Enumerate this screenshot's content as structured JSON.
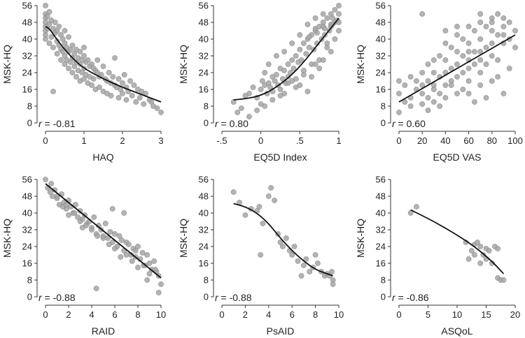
{
  "figure_title": "",
  "chart_data": [
    {
      "type": "scatter",
      "xlabel": "HAQ",
      "ylabel": "MSK-HQ",
      "xlim": [
        0,
        3
      ],
      "ylim": [
        0,
        56
      ],
      "xticks": [
        0,
        1,
        2,
        3
      ],
      "xtick_labels": [
        "0",
        "1",
        "2",
        "3"
      ],
      "yticks": [
        0,
        8,
        16,
        24,
        32,
        40,
        48,
        56
      ],
      "ytick_labels": [
        "0",
        "8",
        "16",
        "24",
        "32",
        "40",
        "48",
        "56"
      ],
      "r_label": "r",
      "r_value": "= -0.81",
      "fit_line": {
        "x": [
          0,
          0.1,
          0.25,
          0.5,
          0.75,
          1.0,
          1.5,
          2.0,
          2.5,
          3.0
        ],
        "y": [
          46,
          45,
          41,
          35,
          30,
          26,
          21,
          17,
          13.5,
          10
        ]
      },
      "points": {
        "x": [
          0,
          0,
          0,
          0,
          0,
          0,
          0,
          0,
          0.05,
          0.05,
          0.1,
          0.1,
          0.1,
          0.15,
          0.15,
          0.2,
          0.2,
          0.2,
          0.25,
          0.25,
          0.3,
          0.3,
          0.3,
          0.35,
          0.35,
          0.4,
          0.4,
          0.4,
          0.45,
          0.45,
          0.5,
          0.5,
          0.5,
          0.5,
          0.55,
          0.55,
          0.6,
          0.6,
          0.6,
          0.65,
          0.65,
          0.7,
          0.7,
          0.7,
          0.75,
          0.75,
          0.8,
          0.8,
          0.8,
          0.85,
          0.85,
          0.9,
          0.9,
          0.9,
          0.95,
          0.95,
          1.0,
          1.0,
          1.0,
          1.0,
          1.05,
          1.05,
          1.1,
          1.1,
          1.15,
          1.15,
          1.2,
          1.2,
          1.25,
          1.25,
          1.3,
          1.3,
          1.35,
          1.35,
          1.4,
          1.4,
          1.45,
          1.5,
          1.5,
          1.55,
          1.6,
          1.6,
          1.65,
          1.7,
          1.7,
          1.75,
          1.8,
          1.8,
          1.85,
          1.9,
          1.9,
          1.95,
          2.0,
          2.0,
          2.05,
          2.1,
          2.1,
          2.15,
          2.2,
          2.25,
          2.3,
          2.35,
          2.4,
          2.45,
          2.5,
          2.55,
          2.6,
          2.7,
          2.75,
          2.8,
          2.9,
          3.0
        ],
        "y": [
          56,
          52,
          50,
          48,
          46,
          44,
          42,
          40,
          51,
          45,
          53,
          47,
          38,
          49,
          41,
          45,
          36,
          15,
          43,
          48,
          44,
          39,
          33,
          37,
          46,
          42,
          35,
          30,
          40,
          34,
          38,
          32,
          28,
          44,
          36,
          30,
          41,
          34,
          26,
          35,
          29,
          37,
          31,
          24,
          33,
          27,
          35,
          29,
          22,
          31,
          25,
          34,
          28,
          20,
          30,
          24,
          32,
          26,
          21,
          36,
          29,
          23,
          30,
          19,
          27,
          22,
          28,
          18,
          26,
          21,
          25,
          16,
          24,
          30,
          22,
          17,
          23,
          27,
          15,
          21,
          20,
          14,
          24,
          19,
          13,
          22,
          18,
          31,
          17,
          21,
          12,
          16,
          19,
          14,
          23,
          17,
          11,
          15,
          20,
          13,
          18,
          10,
          16,
          12,
          15,
          9,
          14,
          11,
          10,
          8,
          7,
          5
        ],
        "yaxis_tick_step": 8
      }
    },
    {
      "type": "scatter",
      "xlabel": "EQ5D Index",
      "ylabel": "MSK-HQ",
      "xlim": [
        -0.5,
        1
      ],
      "ylim": [
        0,
        56
      ],
      "xticks": [
        -0.5,
        0,
        0.5,
        1
      ],
      "xtick_labels": [
        "-.5",
        "0",
        ".5",
        "1"
      ],
      "yticks": [
        0,
        8,
        16,
        24,
        32,
        40,
        48,
        56
      ],
      "ytick_labels": [
        "0",
        "8",
        "16",
        "24",
        "32",
        "40",
        "48",
        "56"
      ],
      "r_label": "r",
      "r_value": "= 0.80",
      "fit_line": {
        "x": [
          -0.35,
          -0.2,
          0,
          0.2,
          0.4,
          0.55,
          0.7,
          0.85,
          1.0
        ],
        "y": [
          11,
          11.5,
          13,
          17,
          23,
          29,
          36,
          43,
          50
        ]
      },
      "points": {
        "x": [
          -0.35,
          -0.3,
          -0.25,
          -0.2,
          -0.15,
          -0.1,
          -0.05,
          0,
          0,
          0.02,
          0.05,
          0.05,
          0.08,
          0.1,
          0.1,
          0.12,
          0.15,
          0.15,
          0.18,
          0.2,
          0.2,
          0.22,
          0.25,
          0.25,
          0.28,
          0.3,
          0.3,
          0.32,
          0.35,
          0.35,
          0.38,
          0.4,
          0.4,
          0.42,
          0.45,
          0.45,
          0.48,
          0.5,
          0.5,
          0.52,
          0.55,
          0.55,
          0.58,
          0.6,
          0.6,
          0.62,
          0.65,
          0.65,
          0.68,
          0.7,
          0.7,
          0.72,
          0.75,
          0.75,
          0.78,
          0.8,
          0.8,
          0.82,
          0.85,
          0.85,
          0.88,
          0.9,
          0.9,
          0.92,
          0.95,
          0.95,
          0.98,
          1.0,
          1.0,
          1.0,
          0.6,
          0.7,
          0.8,
          0.9,
          0.5,
          0.4,
          0.3,
          0.65,
          0.75,
          0.85,
          0.95,
          0.55,
          0.45,
          0.35,
          0.25,
          0.15,
          0.05,
          -0.05,
          -0.15,
          0.7,
          0.8,
          0.9,
          1.0,
          0.62,
          0.72,
          0.82,
          0.92
        ],
        "y": [
          10,
          5,
          7,
          13,
          14,
          17,
          12,
          16,
          9,
          20,
          18,
          24,
          14,
          19,
          28,
          17,
          22,
          15,
          20,
          23,
          32,
          18,
          26,
          16,
          21,
          25,
          34,
          19,
          28,
          22,
          24,
          30,
          38,
          26,
          32,
          21,
          29,
          35,
          42,
          30,
          38,
          25,
          33,
          40,
          47,
          36,
          42,
          28,
          35,
          44,
          50,
          38,
          46,
          30,
          40,
          48,
          52,
          42,
          50,
          36,
          44,
          52,
          46,
          50,
          48,
          54,
          49,
          56,
          44,
          52,
          15,
          28,
          30,
          34,
          18,
          20,
          14,
          22,
          26,
          38,
          40,
          23,
          17,
          19,
          13,
          11,
          8,
          6,
          3,
          45,
          46,
          47,
          48,
          41,
          43,
          45,
          47
        ],
        "yaxis_tick_step": 8
      }
    },
    {
      "type": "scatter",
      "xlabel": "EQ5D VAS",
      "ylabel": "MSK-HQ",
      "xlim": [
        0,
        100
      ],
      "ylim": [
        0,
        56
      ],
      "xticks": [
        0,
        20,
        40,
        60,
        80,
        100
      ],
      "xtick_labels": [
        "0",
        "20",
        "40",
        "60",
        "80",
        "100"
      ],
      "yticks": [
        0,
        8,
        16,
        24,
        32,
        40,
        48,
        56
      ],
      "ytick_labels": [
        "0",
        "8",
        "16",
        "24",
        "32",
        "40",
        "48",
        "56"
      ],
      "r_label": "r",
      "r_value": "= 0.60",
      "fit_line": {
        "x": [
          0,
          100
        ],
        "y": [
          10,
          42
        ]
      },
      "points": {
        "x": [
          0,
          0,
          0,
          5,
          5,
          10,
          10,
          10,
          15,
          15,
          20,
          20,
          20,
          20,
          25,
          25,
          25,
          30,
          30,
          30,
          30,
          35,
          35,
          35,
          40,
          40,
          40,
          40,
          40,
          45,
          45,
          45,
          50,
          50,
          50,
          50,
          50,
          55,
          55,
          55,
          60,
          60,
          60,
          60,
          60,
          60,
          65,
          65,
          65,
          70,
          70,
          70,
          70,
          70,
          70,
          75,
          75,
          75,
          80,
          80,
          80,
          80,
          80,
          85,
          85,
          85,
          90,
          90,
          90,
          90,
          95,
          95,
          100,
          100,
          25,
          35,
          45,
          55,
          65,
          75,
          85,
          95,
          40,
          50,
          60,
          70,
          80,
          90,
          30,
          20
        ],
        "y": [
          14,
          20,
          5,
          18,
          10,
          22,
          12,
          8,
          20,
          16,
          24,
          18,
          14,
          9,
          28,
          20,
          12,
          30,
          24,
          16,
          10,
          32,
          22,
          14,
          38,
          30,
          24,
          18,
          12,
          36,
          26,
          20,
          42,
          34,
          28,
          22,
          14,
          40,
          32,
          24,
          46,
          38,
          30,
          26,
          20,
          14,
          44,
          34,
          28,
          48,
          40,
          34,
          30,
          24,
          18,
          46,
          36,
          28,
          50,
          44,
          38,
          32,
          20,
          52,
          42,
          30,
          50,
          46,
          38,
          14,
          48,
          40,
          44,
          36,
          6,
          8,
          18,
          16,
          10,
          12,
          22,
          26,
          44,
          46,
          34,
          52,
          48,
          42,
          18,
          52
        ],
        "yaxis_tick_step": 8
      }
    },
    {
      "type": "scatter",
      "xlabel": "RAID",
      "ylabel": "MSK-HQ",
      "xlim": [
        0,
        10
      ],
      "ylim": [
        0,
        56
      ],
      "xticks": [
        0,
        2,
        4,
        6,
        8,
        10
      ],
      "xtick_labels": [
        "0",
        "2",
        "4",
        "6",
        "8",
        "10"
      ],
      "yticks": [
        0,
        8,
        16,
        24,
        32,
        40,
        48,
        56
      ],
      "ytick_labels": [
        "0",
        "8",
        "16",
        "24",
        "32",
        "40",
        "48",
        "56"
      ],
      "r_label": "r",
      "r_value": "= -0.88",
      "fit_line": {
        "x": [
          0,
          1,
          2,
          3,
          4,
          5,
          6,
          7,
          8,
          9,
          10
        ],
        "y": [
          54,
          49.5,
          45,
          40.5,
          36,
          31.5,
          27,
          22.5,
          18,
          13.5,
          9
        ]
      },
      "points": {
        "x": [
          0,
          0.2,
          0.4,
          0.6,
          0.8,
          1.0,
          1.2,
          1.4,
          1.6,
          1.8,
          2.0,
          2.2,
          2.4,
          2.6,
          2.8,
          3.0,
          3.2,
          3.4,
          3.6,
          3.8,
          4.0,
          4.2,
          4.4,
          4.6,
          4.8,
          5.0,
          5.2,
          5.4,
          5.6,
          5.8,
          6.0,
          6.2,
          6.4,
          6.6,
          6.8,
          7.0,
          7.2,
          7.4,
          7.6,
          7.8,
          8.0,
          8.2,
          8.4,
          8.6,
          8.8,
          9.0,
          9.2,
          9.4,
          9.6,
          9.8,
          10,
          1.0,
          1.5,
          2.5,
          3.5,
          4.5,
          5.5,
          6.5,
          7.5,
          8.5,
          9.5,
          2.0,
          3.0,
          4.0,
          5.0,
          6.0,
          7.0,
          8.0,
          9.0,
          4.4,
          5.8,
          6.8,
          7.8,
          8.8,
          9.8,
          0.5,
          1.8,
          3.2
        ],
        "y": [
          56,
          52,
          50,
          48,
          51,
          47,
          44,
          49,
          45,
          42,
          46,
          43,
          40,
          44,
          38,
          41,
          37,
          39,
          35,
          36,
          33,
          38,
          30,
          34,
          32,
          29,
          35,
          28,
          31,
          26,
          30,
          24,
          29,
          27,
          22,
          26,
          25,
          20,
          23,
          19,
          24,
          18,
          21,
          15,
          20,
          16,
          13,
          17,
          12,
          10,
          6,
          48,
          43,
          40,
          34,
          29,
          25,
          19,
          17,
          15,
          13,
          39,
          36,
          32,
          28,
          23,
          20,
          14,
          11,
          4,
          42,
          40,
          22,
          8,
          2,
          54,
          44,
          33
        ],
        "yaxis_tick_step": 8
      }
    },
    {
      "type": "scatter",
      "xlabel": "PsAID",
      "ylabel": "MSK-HQ",
      "xlim": [
        0,
        10
      ],
      "ylim": [
        0,
        56
      ],
      "xticks": [
        0,
        2,
        4,
        6,
        8,
        10
      ],
      "xtick_labels": [
        "0",
        "2",
        "4",
        "6",
        "8",
        "10"
      ],
      "yticks": [
        0,
        8,
        16,
        24,
        32,
        40,
        48,
        56
      ],
      "ytick_labels": [
        "0",
        "8",
        "16",
        "24",
        "32",
        "40",
        "48",
        "56"
      ],
      "r_label": "r",
      "r_value": "= -0.88",
      "fit_line": {
        "x": [
          1,
          2,
          3,
          4,
          5,
          6,
          7,
          8,
          9,
          9.5
        ],
        "y": [
          44.5,
          43,
          40,
          35,
          28,
          22,
          17,
          13,
          11,
          10
        ]
      },
      "points": {
        "x": [
          1.0,
          1.5,
          2.0,
          2.5,
          3.0,
          3.2,
          3.5,
          4.0,
          4.2,
          4.5,
          4.8,
          5.0,
          5.2,
          5.5,
          5.8,
          6.0,
          6.2,
          6.5,
          6.8,
          7.0,
          7.2,
          7.5,
          7.8,
          8.0,
          8.2,
          8.5,
          8.8,
          9.0,
          9.2,
          9.4,
          9.5,
          9.5,
          3.3
        ],
        "y": [
          50,
          45,
          39,
          42,
          41,
          43,
          35,
          48,
          52,
          46,
          30,
          26,
          24,
          28,
          22,
          20,
          24,
          17,
          10,
          15,
          18,
          12,
          14,
          20,
          16,
          12,
          10,
          11,
          10,
          12,
          8,
          6,
          20
        ],
        "yaxis_tick_step": 8
      }
    },
    {
      "type": "scatter",
      "xlabel": "ASQoL",
      "ylabel": "MSK-HQ",
      "xlim": [
        0,
        20
      ],
      "ylim": [
        0,
        56
      ],
      "xticks": [
        0,
        5,
        10,
        15,
        20
      ],
      "xtick_labels": [
        "0",
        "5",
        "10",
        "15",
        "20"
      ],
      "yticks": [
        0,
        8,
        16,
        24,
        32,
        40,
        48,
        56
      ],
      "ytick_labels": [
        "0",
        "8",
        "16",
        "24",
        "32",
        "40",
        "48",
        "56"
      ],
      "r_label": "r",
      "r_value": "= -0.86",
      "fit_line": {
        "x": [
          2,
          6,
          10,
          13,
          16,
          18
        ],
        "y": [
          41.5,
          36,
          29.5,
          24,
          17,
          11
        ]
      },
      "points": {
        "x": [
          2,
          3,
          11.5,
          12,
          12.5,
          13,
          13,
          13.5,
          14,
          14,
          14.5,
          15,
          15,
          15.5,
          16,
          16.5,
          17,
          17,
          17.5,
          18
        ],
        "y": [
          40,
          43,
          26,
          18,
          22,
          25,
          20,
          26,
          16,
          24,
          20,
          18,
          23,
          22,
          16,
          24,
          23,
          9,
          8,
          8
        ],
        "yaxis_tick_step": 8
      }
    }
  ]
}
